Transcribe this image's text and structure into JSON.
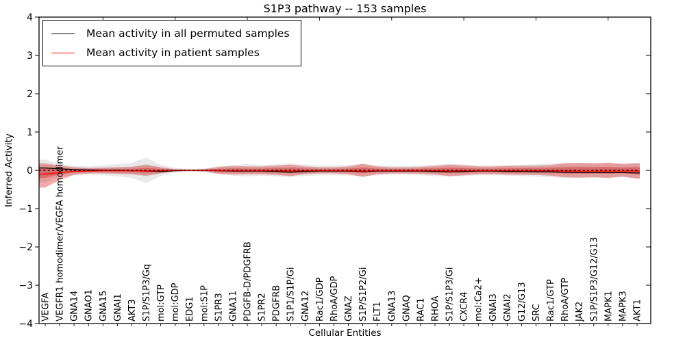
{
  "title": "S1P3 pathway -- 153 samples",
  "axes": {
    "ylabel": "Inferred Activity",
    "xlabel": "Cellular Entities",
    "ytick_labels": [
      "4",
      "3",
      "2",
      "1",
      "0",
      "−1",
      "−2",
      "−3",
      "−4"
    ],
    "ytick_values": [
      4,
      3,
      2,
      1,
      0,
      -1,
      -2,
      -3,
      -4
    ],
    "ylim": [
      -4,
      4
    ]
  },
  "legend": {
    "items": [
      {
        "label": "Mean activity in all permuted samples",
        "color": "#000000"
      },
      {
        "label": "Mean activity in patient samples",
        "color": "#ff0000"
      }
    ]
  },
  "chart_data": {
    "type": "line",
    "title": "S1P3 pathway -- 153 samples",
    "xlabel": "Cellular Entities",
    "ylabel": "Inferred Activity",
    "ylim": [
      -4,
      4
    ],
    "grid": false,
    "legend_position": "upper left",
    "zero_line": {
      "y": 0,
      "style": "dashed",
      "color": "#000000"
    },
    "categories": [
      "VEGFA",
      "VEGFR1 homodimer/VEGFA homodimer",
      "GNA14",
      "GNAO1",
      "GNA15",
      "GNAI1",
      "AKT3",
      "S1P/S1P3/Gq",
      "mol:GTP",
      "mol:GDP",
      "EDG1",
      "mol:S1P",
      "S1PR3",
      "GNA11",
      "PDGFB-D/PDGFRB",
      "S1PR2",
      "PDGFRB",
      "S1P1/S1P/Gi",
      "GNA12",
      "Rac1/GDP",
      "RhoA/GDP",
      "GNAZ",
      "S1P/S1P2/Gi",
      "FLT1",
      "GNA13",
      "GNAQ",
      "RAC1",
      "RHOA",
      "S1P/S1P3/Gi",
      "CXCR4",
      "mol:Ca2+",
      "GNAI3",
      "GNAI2",
      "G12/G13",
      "SRC",
      "Rac1/GTP",
      "RhoA/GTP",
      "JAK2",
      "S1P/S1P3/G12/G13",
      "MAPK1",
      "MAPK3",
      "AKT1"
    ],
    "series": [
      {
        "name": "Mean activity in all permuted samples",
        "line_color": "#000000",
        "band_color": "#999999",
        "band_opacity": 0.22,
        "mean": [
          0.06,
          0.04,
          0.02,
          0.01,
          0.0,
          0.0,
          -0.01,
          -0.02,
          -0.03,
          -0.01,
          0.0,
          0.0,
          -0.01,
          -0.02,
          -0.02,
          -0.02,
          -0.03,
          -0.05,
          -0.03,
          -0.02,
          -0.02,
          -0.02,
          -0.03,
          -0.02,
          -0.02,
          -0.02,
          -0.02,
          -0.03,
          -0.04,
          -0.03,
          -0.02,
          -0.02,
          -0.03,
          -0.03,
          -0.04,
          -0.04,
          -0.05,
          -0.06,
          -0.06,
          -0.06,
          -0.06,
          -0.07
        ],
        "band_hi": [
          0.28,
          0.17,
          0.12,
          0.1,
          0.13,
          0.16,
          0.2,
          0.33,
          0.15,
          0.06,
          0.03,
          0.05,
          0.1,
          0.14,
          0.16,
          0.14,
          0.16,
          0.18,
          0.15,
          0.13,
          0.13,
          0.14,
          0.16,
          0.13,
          0.12,
          0.12,
          0.13,
          0.15,
          0.17,
          0.15,
          0.13,
          0.13,
          0.14,
          0.15,
          0.16,
          0.18,
          0.2,
          0.2,
          0.19,
          0.18,
          0.18,
          0.2
        ],
        "band_lo": [
          -0.32,
          -0.17,
          -0.12,
          -0.1,
          -0.13,
          -0.16,
          -0.2,
          -0.33,
          -0.15,
          -0.06,
          -0.03,
          -0.05,
          -0.1,
          -0.14,
          -0.16,
          -0.14,
          -0.16,
          -0.18,
          -0.15,
          -0.13,
          -0.13,
          -0.14,
          -0.16,
          -0.13,
          -0.12,
          -0.12,
          -0.13,
          -0.15,
          -0.17,
          -0.15,
          -0.13,
          -0.13,
          -0.14,
          -0.15,
          -0.16,
          -0.18,
          -0.2,
          -0.2,
          -0.19,
          -0.18,
          -0.18,
          -0.2
        ]
      },
      {
        "name": "Mean activity in patient samples",
        "line_color": "#ff0000",
        "band_color": "#dd2222",
        "band_opacity": 0.38,
        "mean": [
          -0.1,
          -0.06,
          -0.03,
          -0.02,
          -0.01,
          -0.01,
          -0.01,
          -0.02,
          -0.01,
          0.0,
          0.0,
          0.0,
          -0.01,
          -0.01,
          -0.01,
          -0.01,
          -0.01,
          -0.02,
          -0.01,
          -0.01,
          -0.01,
          -0.01,
          -0.02,
          -0.01,
          -0.01,
          -0.01,
          -0.01,
          -0.01,
          -0.02,
          -0.01,
          -0.01,
          -0.01,
          -0.01,
          -0.01,
          -0.01,
          -0.01,
          -0.02,
          -0.02,
          -0.02,
          -0.02,
          -0.02,
          -0.02
        ],
        "band_hi": [
          0.18,
          0.12,
          0.08,
          0.06,
          0.07,
          0.08,
          0.09,
          0.14,
          0.08,
          0.03,
          0.02,
          0.03,
          0.09,
          0.11,
          0.1,
          0.1,
          0.12,
          0.15,
          0.1,
          0.08,
          0.08,
          0.1,
          0.17,
          0.1,
          0.08,
          0.08,
          0.09,
          0.11,
          0.15,
          0.13,
          0.1,
          0.1,
          0.11,
          0.12,
          0.12,
          0.14,
          0.18,
          0.19,
          0.18,
          0.2,
          0.16,
          0.18
        ],
        "band_lo": [
          -0.45,
          -0.25,
          -0.12,
          -0.08,
          -0.08,
          -0.09,
          -0.1,
          -0.14,
          -0.08,
          -0.03,
          -0.02,
          -0.03,
          -0.09,
          -0.11,
          -0.1,
          -0.1,
          -0.12,
          -0.15,
          -0.1,
          -0.08,
          -0.08,
          -0.1,
          -0.17,
          -0.1,
          -0.08,
          -0.08,
          -0.09,
          -0.11,
          -0.15,
          -0.13,
          -0.1,
          -0.1,
          -0.11,
          -0.12,
          -0.12,
          -0.14,
          -0.18,
          -0.19,
          -0.18,
          -0.2,
          -0.16,
          -0.22
        ]
      }
    ]
  }
}
